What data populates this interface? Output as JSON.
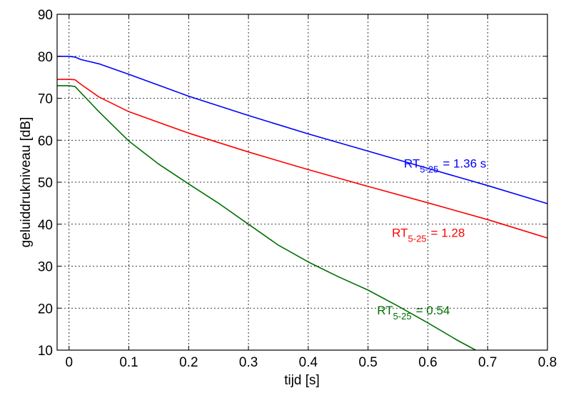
{
  "chart_data": {
    "type": "line",
    "title": "",
    "xlabel": "tijd  [s]",
    "ylabel": "geluiddrukniveau  [dB]",
    "xlim": [
      -0.02,
      0.8
    ],
    "ylim": [
      10,
      90
    ],
    "xticks": [
      0,
      0.1,
      0.2,
      0.3,
      0.4,
      0.5,
      0.6,
      0.7,
      0.8
    ],
    "xtick_labels": [
      "0",
      "0.1",
      "0.2",
      "0.3",
      "0.4",
      "0.5",
      "0.6",
      "0.7",
      "0.8"
    ],
    "yticks": [
      10,
      20,
      30,
      40,
      50,
      60,
      70,
      80,
      90
    ],
    "ytick_labels": [
      "10",
      "20",
      "30",
      "40",
      "50",
      "60",
      "70",
      "80",
      "90"
    ],
    "grid": true,
    "grid_style": "dotted",
    "series": [
      {
        "color": "#0000ff",
        "points": [
          [
            -0.02,
            80.0
          ],
          [
            0.0,
            80.0
          ],
          [
            0.01,
            79.8
          ],
          [
            0.02,
            79.2
          ],
          [
            0.05,
            78.2
          ],
          [
            0.1,
            75.7
          ],
          [
            0.2,
            70.5
          ],
          [
            0.3,
            65.9
          ],
          [
            0.4,
            61.5
          ],
          [
            0.5,
            57.4
          ],
          [
            0.6,
            53.3
          ],
          [
            0.7,
            49.2
          ],
          [
            0.8,
            44.9
          ]
        ],
        "annotation": {
          "base": "RT",
          "sub": "5-25",
          "value": "=  1.36 s",
          "x": 0.56,
          "y": 53.5
        }
      },
      {
        "color": "#ff0000",
        "points": [
          [
            -0.02,
            74.5
          ],
          [
            0.0,
            74.5
          ],
          [
            0.01,
            74.4
          ],
          [
            0.02,
            73.3
          ],
          [
            0.05,
            70.3
          ],
          [
            0.1,
            66.8
          ],
          [
            0.2,
            61.7
          ],
          [
            0.3,
            57.2
          ],
          [
            0.4,
            53.0
          ],
          [
            0.5,
            49.0
          ],
          [
            0.6,
            45.1
          ],
          [
            0.7,
            41.1
          ],
          [
            0.8,
            36.7
          ]
        ],
        "annotation": {
          "base": "RT",
          "sub": "5-25",
          "value": "=  1.28",
          "x": 0.54,
          "y": 37.0
        }
      },
      {
        "color": "#007000",
        "points": [
          [
            -0.02,
            73.0
          ],
          [
            0.0,
            73.0
          ],
          [
            0.01,
            72.8
          ],
          [
            0.02,
            71.3
          ],
          [
            0.05,
            66.8
          ],
          [
            0.1,
            59.8
          ],
          [
            0.15,
            54.3
          ],
          [
            0.2,
            49.6
          ],
          [
            0.25,
            45.0
          ],
          [
            0.3,
            40.0
          ],
          [
            0.35,
            35.0
          ],
          [
            0.4,
            31.0
          ],
          [
            0.45,
            27.5
          ],
          [
            0.5,
            24.3
          ],
          [
            0.55,
            20.5
          ],
          [
            0.6,
            16.5
          ],
          [
            0.65,
            12.3
          ],
          [
            0.68,
            10.0
          ]
        ],
        "annotation": {
          "base": "RT",
          "sub": "5-25",
          "value": "=  0.54",
          "x": 0.515,
          "y": 18.5
        }
      }
    ]
  }
}
